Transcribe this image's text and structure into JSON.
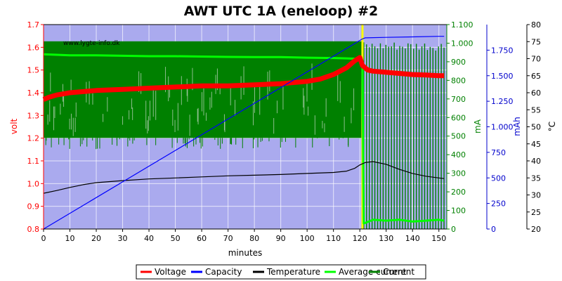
{
  "chart_data": {
    "type": "line",
    "title": "AWT UTC 1A (eneloop) #2",
    "watermark": "www.lygte-info.dk",
    "xlabel": "minutes",
    "xlim": [
      0,
      153
    ],
    "x_ticks": [
      "0",
      "10",
      "20",
      "30",
      "40",
      "50",
      "60",
      "70",
      "80",
      "90",
      "100",
      "110",
      "120",
      "130",
      "140",
      "150"
    ],
    "axes": {
      "volt": {
        "label": "volt",
        "color": "#ff0000",
        "range": [
          0.8,
          1.7
        ],
        "ticks": [
          "0.8",
          "0.9",
          "1.0",
          "1.1",
          "1.2",
          "1.3",
          "1.4",
          "1.5",
          "1.6",
          "1.7"
        ]
      },
      "mA": {
        "label": "mA",
        "color": "#008000",
        "range": [
          0,
          1100
        ],
        "ticks": [
          "0",
          "100",
          "200",
          "300",
          "400",
          "500",
          "600",
          "700",
          "800",
          "900",
          "1.000",
          "1.100"
        ]
      },
      "mAh": {
        "label": "mAh",
        "color": "#0000cc",
        "range": [
          0,
          2000
        ],
        "ticks": [
          "0",
          "250",
          "500",
          "750",
          "1.000",
          "1.250",
          "1.500",
          "1.750"
        ]
      },
      "celsius": {
        "label": "°C",
        "color": "#000000",
        "range": [
          20,
          80
        ],
        "ticks": [
          "20",
          "25",
          "30",
          "35",
          "40",
          "45",
          "50",
          "55",
          "60",
          "65",
          "70",
          "75",
          "80"
        ]
      }
    },
    "series": [
      {
        "name": "Voltage",
        "axis": "volt",
        "color": "#ff0000",
        "x": [
          0,
          2,
          5,
          10,
          20,
          30,
          40,
          50,
          60,
          70,
          80,
          90,
          100,
          105,
          110,
          115,
          118,
          120,
          121,
          123,
          125,
          130,
          135,
          140,
          145,
          150,
          152
        ],
        "y": [
          1.37,
          1.38,
          1.39,
          1.4,
          1.41,
          1.415,
          1.42,
          1.425,
          1.43,
          1.43,
          1.435,
          1.44,
          1.45,
          1.46,
          1.48,
          1.51,
          1.54,
          1.555,
          1.52,
          1.5,
          1.495,
          1.49,
          1.485,
          1.48,
          1.478,
          1.475,
          1.475
        ]
      },
      {
        "name": "Capacity",
        "axis": "mAh",
        "color": "#0000ff",
        "x": [
          0,
          121,
          122,
          130,
          140,
          150,
          152
        ],
        "y": [
          0,
          1860,
          1870,
          1875,
          1880,
          1885,
          1885
        ]
      },
      {
        "name": "Temperature",
        "axis": "celsius",
        "color": "#000000",
        "x": [
          0,
          5,
          10,
          15,
          20,
          30,
          40,
          50,
          60,
          70,
          80,
          90,
          100,
          110,
          115,
          118,
          120,
          122,
          125,
          130,
          135,
          140,
          145,
          150,
          152
        ],
        "y": [
          30.5,
          31.3,
          32.2,
          33.0,
          33.6,
          34.2,
          34.7,
          35.0,
          35.3,
          35.6,
          35.8,
          36.0,
          36.3,
          36.6,
          37.0,
          37.8,
          38.8,
          39.5,
          39.8,
          39.0,
          37.5,
          36.3,
          35.5,
          35.0,
          34.8
        ]
      },
      {
        "name": "Average current",
        "axis": "mA",
        "color": "#00ff00",
        "x": [
          0,
          10,
          20,
          30,
          40,
          50,
          60,
          70,
          80,
          90,
          100,
          110,
          115,
          120,
          121,
          121.5,
          125,
          130,
          135,
          140,
          145,
          150,
          152
        ],
        "y": [
          940,
          935,
          935,
          932,
          930,
          930,
          928,
          926,
          925,
          925,
          922,
          920,
          918,
          915,
          900,
          30,
          50,
          45,
          50,
          40,
          45,
          50,
          45
        ]
      },
      {
        "name": "Current",
        "axis": "mA",
        "color": "#008000",
        "band_x": [
          0,
          121
        ],
        "band_y": [
          490,
          1010
        ],
        "pulse_x": [
          121.5,
          152
        ],
        "pulse_y": [
          0,
          1010
        ]
      }
    ],
    "markers": [
      {
        "x": 121,
        "color": "#ffff00"
      }
    ],
    "legend": {
      "position": "bottom",
      "entries": [
        "Voltage",
        "Capacity",
        "Temperature",
        "Average current",
        "Current"
      ]
    },
    "grid": true
  }
}
